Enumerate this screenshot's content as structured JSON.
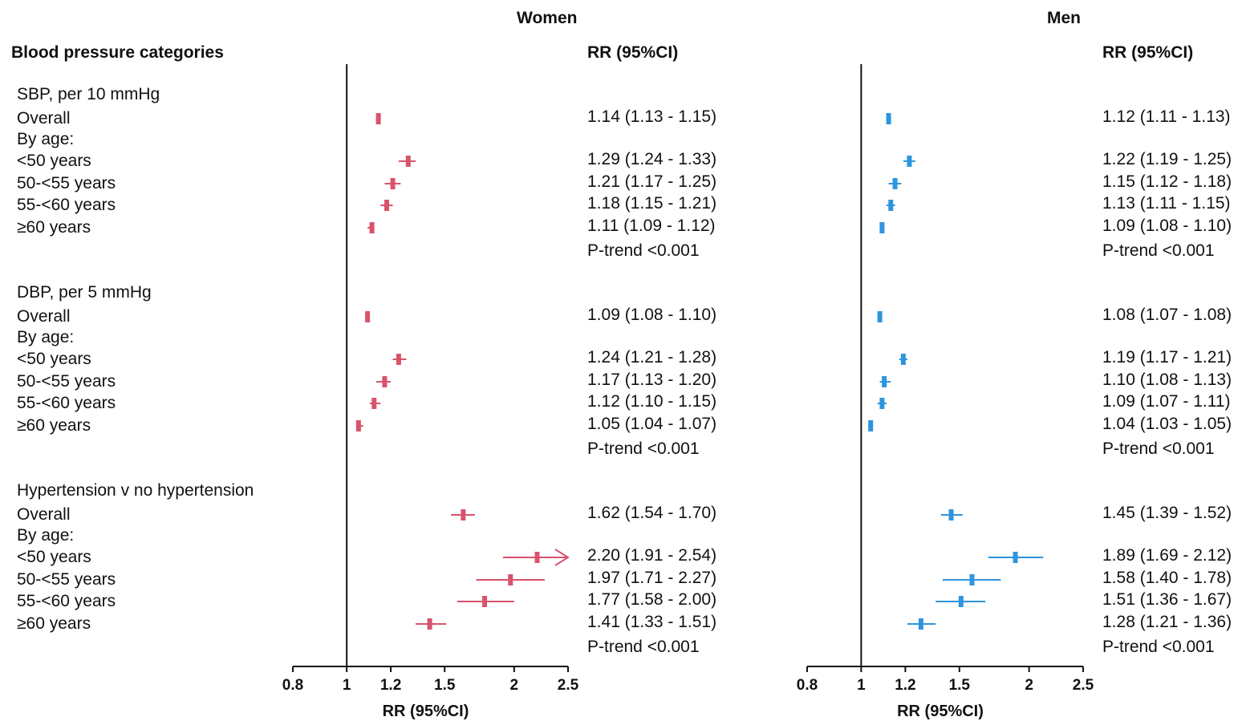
{
  "header": {
    "category_heading": "Blood pressure categories",
    "rr_heading": "RR (95%CI)"
  },
  "rows": [
    {
      "label": "SBP, per 10 mmHg",
      "kind": "section"
    },
    {
      "label": "Overall",
      "kind": "data"
    },
    {
      "label": "By age:",
      "kind": "sub"
    },
    {
      "label": "<50 years",
      "kind": "data"
    },
    {
      "label": "50-<55 years",
      "kind": "data"
    },
    {
      "label": "55-<60 years",
      "kind": "data"
    },
    {
      "label": "≥60 years",
      "kind": "data"
    },
    {
      "label": "",
      "kind": "trend"
    },
    {
      "label": "DBP, per 5 mmHg",
      "kind": "section"
    },
    {
      "label": "Overall",
      "kind": "data"
    },
    {
      "label": "By age:",
      "kind": "sub"
    },
    {
      "label": "<50 years",
      "kind": "data"
    },
    {
      "label": "50-<55 years",
      "kind": "data"
    },
    {
      "label": "55-<60 years",
      "kind": "data"
    },
    {
      "label": "≥60 years",
      "kind": "data"
    },
    {
      "label": "",
      "kind": "trend"
    },
    {
      "label": "Hypertension v no hypertension",
      "kind": "section"
    },
    {
      "label": "Overall",
      "kind": "data"
    },
    {
      "label": "By age:",
      "kind": "sub"
    },
    {
      "label": "<50 years",
      "kind": "data"
    },
    {
      "label": "50-<55 years",
      "kind": "data"
    },
    {
      "label": "55-<60 years",
      "kind": "data"
    },
    {
      "label": "≥60 years",
      "kind": "data"
    },
    {
      "label": "",
      "kind": "trend"
    }
  ],
  "chart_data": {
    "type": "forest",
    "axis": {
      "scale": "log",
      "ticks": [
        0.8,
        1,
        1.2,
        1.5,
        2,
        2.5
      ],
      "tick_labels": [
        "0.8",
        "1",
        "1.2",
        "1.5",
        "2",
        "2.5"
      ],
      "xlim": [
        0.8,
        2.5
      ],
      "reference_line": 1,
      "xlabel": "RR (95%CI)"
    },
    "panels": [
      {
        "name": "Women",
        "color": "#d9536b",
        "points": [
          {
            "row": 1,
            "rr": 1.14,
            "lo": 1.13,
            "hi": 1.15,
            "text": "1.14 (1.13 - 1.15)"
          },
          {
            "row": 3,
            "rr": 1.29,
            "lo": 1.24,
            "hi": 1.33,
            "text": "1.29 (1.24 - 1.33)"
          },
          {
            "row": 4,
            "rr": 1.21,
            "lo": 1.17,
            "hi": 1.25,
            "text": "1.21 (1.17 - 1.25)"
          },
          {
            "row": 5,
            "rr": 1.18,
            "lo": 1.15,
            "hi": 1.21,
            "text": "1.18 (1.15 - 1.21)"
          },
          {
            "row": 6,
            "rr": 1.11,
            "lo": 1.09,
            "hi": 1.12,
            "text": "1.11 (1.09 - 1.12)"
          },
          {
            "row": 9,
            "rr": 1.09,
            "lo": 1.08,
            "hi": 1.1,
            "text": "1.09 (1.08 - 1.10)"
          },
          {
            "row": 11,
            "rr": 1.24,
            "lo": 1.21,
            "hi": 1.28,
            "text": "1.24 (1.21 - 1.28)"
          },
          {
            "row": 12,
            "rr": 1.17,
            "lo": 1.13,
            "hi": 1.2,
            "text": "1.17 (1.13 - 1.20)"
          },
          {
            "row": 13,
            "rr": 1.12,
            "lo": 1.1,
            "hi": 1.15,
            "text": "1.12 (1.10 - 1.15)"
          },
          {
            "row": 14,
            "rr": 1.05,
            "lo": 1.04,
            "hi": 1.07,
            "text": "1.05 (1.04 - 1.07)"
          },
          {
            "row": 17,
            "rr": 1.62,
            "lo": 1.54,
            "hi": 1.7,
            "text": "1.62 (1.54 - 1.70)"
          },
          {
            "row": 19,
            "rr": 2.2,
            "lo": 1.91,
            "hi": 2.54,
            "text": "2.20 (1.91 - 2.54)",
            "truncated": true
          },
          {
            "row": 20,
            "rr": 1.97,
            "lo": 1.71,
            "hi": 2.27,
            "text": "1.97 (1.71 - 2.27)"
          },
          {
            "row": 21,
            "rr": 1.77,
            "lo": 1.58,
            "hi": 2.0,
            "text": "1.77 (1.58 - 2.00)"
          },
          {
            "row": 22,
            "rr": 1.41,
            "lo": 1.33,
            "hi": 1.51,
            "text": "1.41 (1.33 - 1.51)"
          }
        ],
        "trends": [
          {
            "row": 7,
            "text": "P-trend <0.001"
          },
          {
            "row": 15,
            "text": "P-trend <0.001"
          },
          {
            "row": 23,
            "text": "P-trend <0.001"
          }
        ]
      },
      {
        "name": "Men",
        "color": "#2e95de",
        "points": [
          {
            "row": 1,
            "rr": 1.12,
            "lo": 1.11,
            "hi": 1.13,
            "text": "1.12 (1.11 - 1.13)"
          },
          {
            "row": 3,
            "rr": 1.22,
            "lo": 1.19,
            "hi": 1.25,
            "text": "1.22 (1.19 - 1.25)"
          },
          {
            "row": 4,
            "rr": 1.15,
            "lo": 1.12,
            "hi": 1.18,
            "text": "1.15 (1.12 - 1.18)"
          },
          {
            "row": 5,
            "rr": 1.13,
            "lo": 1.11,
            "hi": 1.15,
            "text": "1.13 (1.11 - 1.15)"
          },
          {
            "row": 6,
            "rr": 1.09,
            "lo": 1.08,
            "hi": 1.1,
            "text": "1.09 (1.08 - 1.10)"
          },
          {
            "row": 9,
            "rr": 1.08,
            "lo": 1.07,
            "hi": 1.08,
            "text": "1.08 (1.07 - 1.08)"
          },
          {
            "row": 11,
            "rr": 1.19,
            "lo": 1.17,
            "hi": 1.21,
            "text": "1.19 (1.17 - 1.21)"
          },
          {
            "row": 12,
            "rr": 1.1,
            "lo": 1.08,
            "hi": 1.13,
            "text": "1.10 (1.08 - 1.13)"
          },
          {
            "row": 13,
            "rr": 1.09,
            "lo": 1.07,
            "hi": 1.11,
            "text": "1.09 (1.07 - 1.11)"
          },
          {
            "row": 14,
            "rr": 1.04,
            "lo": 1.03,
            "hi": 1.05,
            "text": "1.04 (1.03 - 1.05)"
          },
          {
            "row": 17,
            "rr": 1.45,
            "lo": 1.39,
            "hi": 1.52,
            "text": "1.45 (1.39 - 1.52)"
          },
          {
            "row": 19,
            "rr": 1.89,
            "lo": 1.69,
            "hi": 2.12,
            "text": "1.89 (1.69 - 2.12)"
          },
          {
            "row": 20,
            "rr": 1.58,
            "lo": 1.4,
            "hi": 1.78,
            "text": "1.58 (1.40 - 1.78)"
          },
          {
            "row": 21,
            "rr": 1.51,
            "lo": 1.36,
            "hi": 1.67,
            "text": "1.51 (1.36 - 1.67)"
          },
          {
            "row": 22,
            "rr": 1.28,
            "lo": 1.21,
            "hi": 1.36,
            "text": "1.28 (1.21 - 1.36)"
          }
        ],
        "trends": [
          {
            "row": 7,
            "text": "P-trend <0.001"
          },
          {
            "row": 15,
            "text": "P-trend <0.001"
          },
          {
            "row": 23,
            "text": "P-trend <0.001"
          }
        ]
      }
    ]
  }
}
